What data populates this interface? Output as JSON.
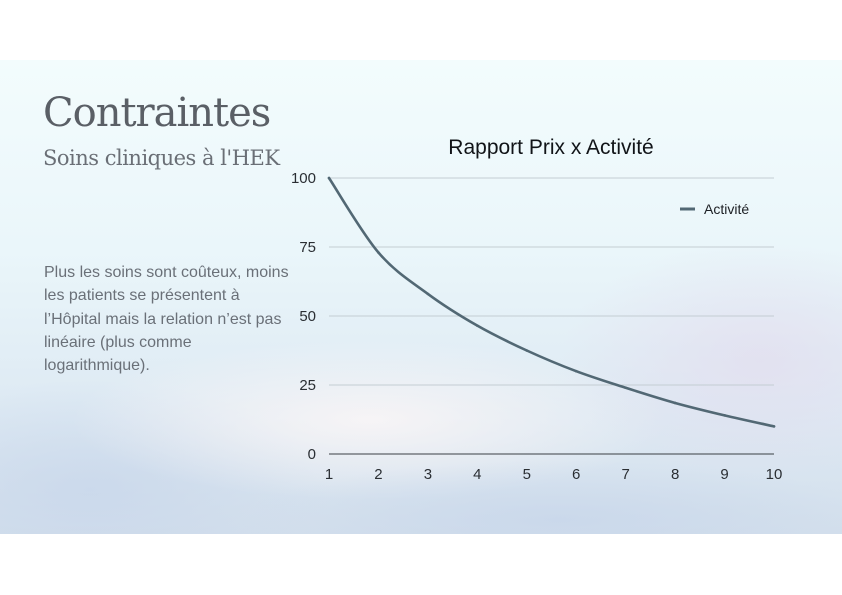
{
  "slide": {
    "title": "Contraintes",
    "subtitle": "Soins cliniques à l'HEK",
    "body": "Plus les soins sont coûteux, moins les patients se présentent à l’Hôpital mais la relation n’est pas linéaire (plus comme logarithmique)."
  },
  "colors": {
    "series": "#526874",
    "grid": "#c4cdd3",
    "axis": "#3a3f44"
  },
  "chart_data": {
    "type": "line",
    "title": "Rapport Prix x Activité",
    "xlabel": "",
    "ylabel": "",
    "x": [
      1,
      2,
      3,
      4,
      5,
      6,
      7,
      8,
      9,
      10
    ],
    "series": [
      {
        "name": "Activité",
        "values": [
          100,
          73,
          58,
          46.5,
          37.5,
          30,
          24,
          18.5,
          14,
          10
        ]
      }
    ],
    "xticks": [
      "1",
      "2",
      "3",
      "4",
      "5",
      "6",
      "7",
      "8",
      "9",
      "10"
    ],
    "yticks": [
      "0",
      "25",
      "50",
      "75",
      "100"
    ],
    "xlim": [
      1,
      10
    ],
    "ylim": [
      0,
      100
    ],
    "grid": true,
    "legend": "top-right"
  }
}
